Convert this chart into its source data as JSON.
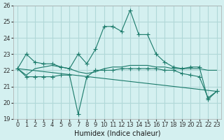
{
  "xlabel": "Humidex (Indice chaleur)",
  "ylabel": "",
  "bg_color": "#d4f0f0",
  "grid_color": "#b0d8d8",
  "line_color": "#1a7a6a",
  "xlim": [
    -0.5,
    23.5
  ],
  "ylim": [
    19,
    26
  ],
  "yticks": [
    19,
    20,
    21,
    22,
    23,
    24,
    25,
    26
  ],
  "xticks": [
    0,
    1,
    2,
    3,
    4,
    5,
    6,
    7,
    8,
    9,
    10,
    11,
    12,
    13,
    14,
    15,
    16,
    17,
    18,
    19,
    20,
    21,
    22,
    23
  ],
  "series1_x": [
    0,
    1,
    2,
    3,
    4,
    5,
    6,
    7,
    8,
    9,
    10,
    11,
    12,
    13,
    14,
    15,
    16,
    17,
    18,
    19,
    20,
    21,
    22,
    23
  ],
  "series1_y": [
    22.1,
    23.0,
    22.5,
    22.4,
    22.4,
    22.2,
    22.1,
    23.0,
    22.4,
    23.3,
    24.7,
    24.7,
    24.4,
    25.7,
    24.2,
    24.2,
    23.0,
    22.5,
    22.2,
    22.1,
    22.2,
    22.2,
    20.2,
    20.7
  ],
  "series2_x": [
    0,
    1,
    2,
    3,
    4,
    5,
    6,
    7,
    8,
    9,
    10,
    11,
    12,
    13,
    14,
    15,
    16,
    17,
    18,
    19,
    20,
    21,
    22,
    23
  ],
  "series2_y": [
    22.1,
    21.7,
    22.1,
    22.2,
    22.3,
    22.2,
    22.1,
    21.9,
    21.8,
    21.9,
    22.1,
    22.2,
    22.2,
    22.3,
    22.3,
    22.3,
    22.2,
    22.2,
    22.1,
    22.1,
    22.1,
    22.1,
    22.0,
    22.0
  ],
  "series3_x": [
    0,
    1,
    2,
    3,
    4,
    5,
    6,
    7,
    8,
    9,
    10,
    11,
    12,
    13,
    14,
    15,
    16,
    17,
    18,
    19,
    20,
    21,
    22,
    23
  ],
  "series3_y": [
    22.1,
    21.6,
    21.6,
    21.6,
    21.6,
    21.7,
    21.7,
    19.3,
    21.6,
    22.0,
    22.0,
    22.0,
    22.1,
    22.1,
    22.1,
    22.1,
    22.1,
    22.0,
    22.0,
    21.8,
    21.7,
    21.6,
    20.3,
    20.7
  ],
  "series4_x": [
    0,
    23
  ],
  "series4_y": [
    22.1,
    20.7
  ]
}
